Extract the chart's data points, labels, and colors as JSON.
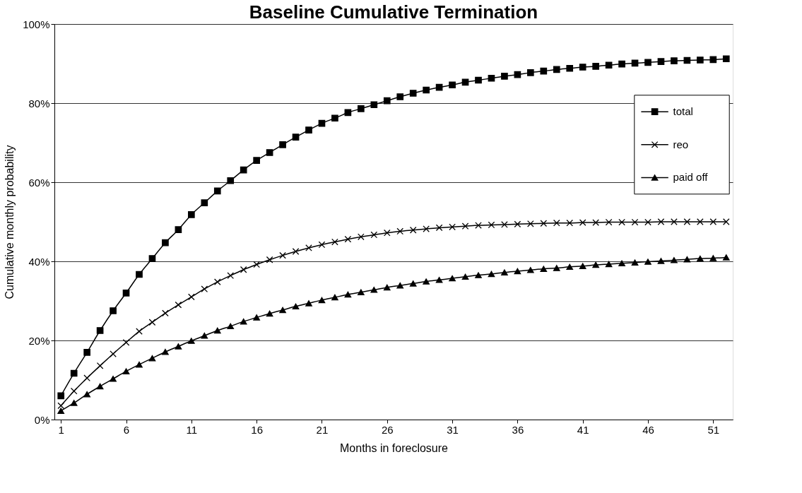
{
  "chart_data": {
    "type": "line",
    "title": "Baseline Cumulative Termination",
    "xlabel": "Months in foreclosure",
    "ylabel": "Cumulative monthly probability",
    "x": [
      1,
      2,
      3,
      4,
      5,
      6,
      7,
      8,
      9,
      10,
      11,
      12,
      13,
      14,
      15,
      16,
      17,
      18,
      19,
      20,
      21,
      22,
      23,
      24,
      25,
      26,
      27,
      28,
      29,
      30,
      31,
      32,
      33,
      34,
      35,
      36,
      37,
      38,
      39,
      40,
      41,
      42,
      43,
      44,
      45,
      46,
      47,
      48,
      49,
      50,
      51,
      52
    ],
    "xlim": [
      0.5,
      52.5
    ],
    "xticks": [
      1,
      6,
      11,
      16,
      21,
      26,
      31,
      36,
      41,
      46,
      51
    ],
    "ylim": [
      0,
      100
    ],
    "yticks": [
      {
        "value": 0,
        "label": "0%"
      },
      {
        "value": 20,
        "label": "20%"
      },
      {
        "value": 40,
        "label": "40%"
      },
      {
        "value": 60,
        "label": "60%"
      },
      {
        "value": 80,
        "label": "80%"
      },
      {
        "value": 100,
        "label": "100%"
      }
    ],
    "grid": "y",
    "legend": "top right",
    "line_style": "solid",
    "series": [
      {
        "name": "total",
        "color": "#000000",
        "marker": "square",
        "values": [
          6,
          11.7,
          17,
          22.5,
          27.5,
          32,
          36.7,
          40.7,
          44.7,
          48,
          51.8,
          54.8,
          57.8,
          60.4,
          63.1,
          65.5,
          67.5,
          69.5,
          71.4,
          73.2,
          74.9,
          76.2,
          77.6,
          78.6,
          79.6,
          80.6,
          81.6,
          82.5,
          83.3,
          84,
          84.6,
          85.3,
          85.8,
          86.3,
          86.8,
          87.2,
          87.7,
          88.1,
          88.5,
          88.8,
          89.1,
          89.3,
          89.6,
          89.9,
          90.1,
          90.3,
          90.5,
          90.7,
          90.8,
          90.9,
          91,
          91.2
        ]
      },
      {
        "name": "reo",
        "color": "#000000",
        "marker": "cross",
        "values": [
          3.5,
          7.2,
          10.5,
          13.6,
          16.6,
          19.5,
          22.3,
          24.6,
          26.9,
          29,
          31,
          33,
          34.8,
          36.4,
          37.9,
          39.2,
          40.4,
          41.5,
          42.5,
          43.4,
          44.2,
          44.9,
          45.6,
          46.2,
          46.7,
          47.2,
          47.6,
          47.9,
          48.2,
          48.5,
          48.7,
          48.9,
          49.1,
          49.2,
          49.3,
          49.4,
          49.5,
          49.6,
          49.7,
          49.7,
          49.8,
          49.8,
          49.9,
          49.9,
          49.9,
          49.9,
          50,
          50,
          50,
          50,
          50,
          50
        ]
      },
      {
        "name": "paid off",
        "color": "#000000",
        "marker": "triangle",
        "values": [
          2.2,
          4.2,
          6.4,
          8.4,
          10.3,
          12.2,
          13.9,
          15.5,
          17.1,
          18.5,
          19.9,
          21.2,
          22.5,
          23.6,
          24.8,
          25.8,
          26.8,
          27.7,
          28.6,
          29.4,
          30.2,
          30.9,
          31.6,
          32.2,
          32.8,
          33.4,
          33.9,
          34.4,
          34.9,
          35.3,
          35.7,
          36.1,
          36.5,
          36.8,
          37.2,
          37.5,
          37.8,
          38.1,
          38.3,
          38.6,
          38.8,
          39.1,
          39.3,
          39.5,
          39.7,
          39.9,
          40.1,
          40.3,
          40.5,
          40.7,
          40.8,
          41
        ]
      }
    ]
  }
}
